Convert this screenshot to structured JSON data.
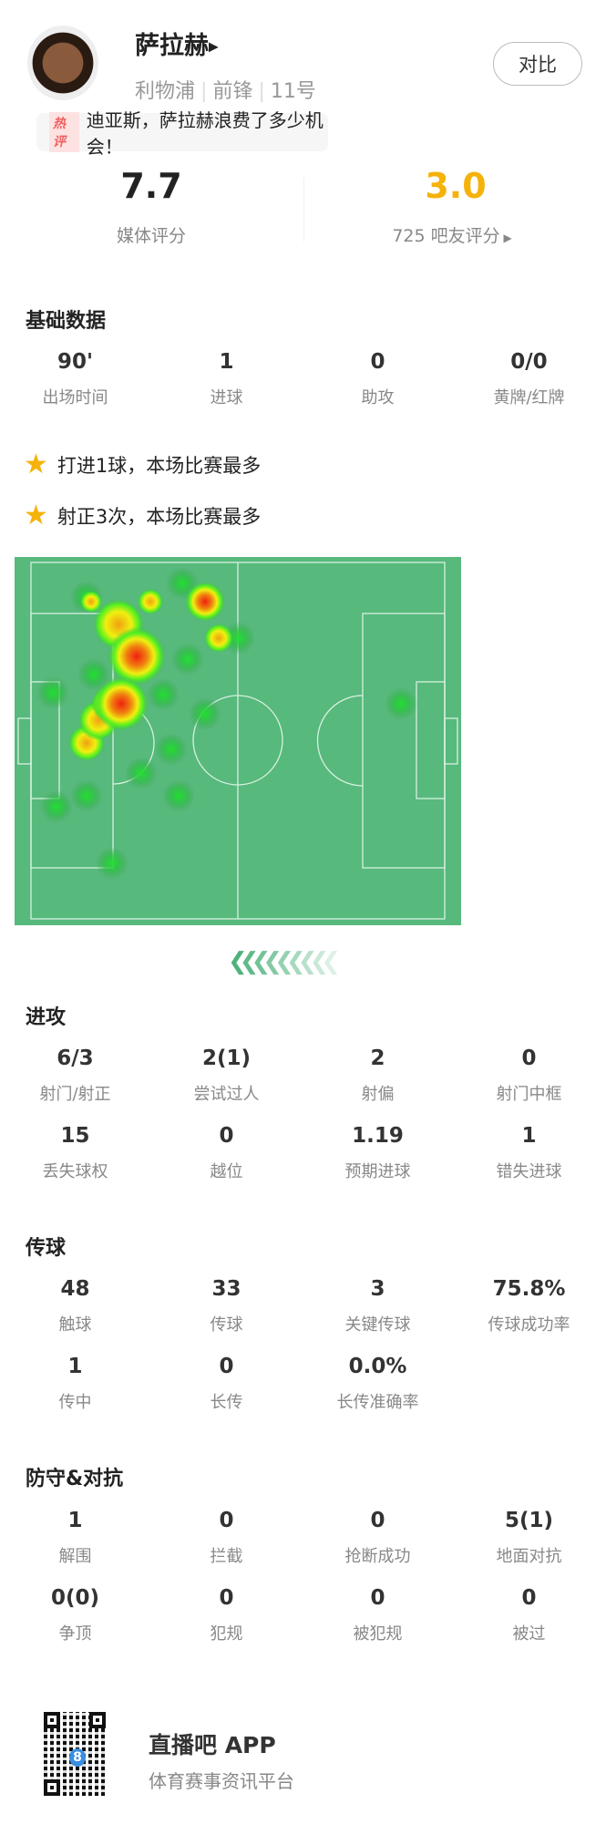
{
  "player": {
    "name": "萨拉赫",
    "team": "利物浦",
    "position": "前锋",
    "number": "11号",
    "compare_label": "对比"
  },
  "hot_comment": {
    "tag": "热评",
    "text": "迪亚斯，萨拉赫浪费了多少机会！"
  },
  "ratings": {
    "media_score": "7.7",
    "media_label": "媒体评分",
    "fan_score": "3.0",
    "fan_label": "725 吧友评分",
    "fan_color": "#f5b20a"
  },
  "basic": {
    "title": "基础数据",
    "items": [
      {
        "value": "90'",
        "label": "出场时间"
      },
      {
        "value": "1",
        "label": "进球"
      },
      {
        "value": "0",
        "label": "助攻"
      },
      {
        "value": "0/0",
        "label": "黄牌/红牌"
      }
    ]
  },
  "highlights": [
    "打进1球，本场比赛最多",
    "射正3次，本场比赛最多"
  ],
  "heatmap": {
    "pitch_color": "#57b97c",
    "icon": "chevron-left-arrows"
  },
  "attack": {
    "title": "进攻",
    "items": [
      {
        "value": "6/3",
        "label": "射门/射正"
      },
      {
        "value": "2(1)",
        "label": "尝试过人"
      },
      {
        "value": "2",
        "label": "射偏"
      },
      {
        "value": "0",
        "label": "射门中框"
      },
      {
        "value": "15",
        "label": "丢失球权"
      },
      {
        "value": "0",
        "label": "越位"
      },
      {
        "value": "1.19",
        "label": "预期进球"
      },
      {
        "value": "1",
        "label": "错失进球"
      }
    ]
  },
  "passing": {
    "title": "传球",
    "items": [
      {
        "value": "48",
        "label": "触球"
      },
      {
        "value": "33",
        "label": "传球"
      },
      {
        "value": "3",
        "label": "关键传球"
      },
      {
        "value": "75.8%",
        "label": "传球成功率"
      },
      {
        "value": "1",
        "label": "传中"
      },
      {
        "value": "0",
        "label": "长传"
      },
      {
        "value": "0.0%",
        "label": "长传准确率"
      }
    ]
  },
  "defense": {
    "title": "防守&对抗",
    "items": [
      {
        "value": "1",
        "label": "解围"
      },
      {
        "value": "0",
        "label": "拦截"
      },
      {
        "value": "0",
        "label": "抢断成功"
      },
      {
        "value": "5(1)",
        "label": "地面对抗"
      },
      {
        "value": "0(0)",
        "label": "争顶"
      },
      {
        "value": "0",
        "label": "犯规"
      },
      {
        "value": "0",
        "label": "被犯规"
      },
      {
        "value": "0",
        "label": "被过"
      }
    ]
  },
  "footer": {
    "app_name": "直播吧 APP",
    "slogan": "体育赛事资讯平台",
    "qr_logo": "8"
  }
}
